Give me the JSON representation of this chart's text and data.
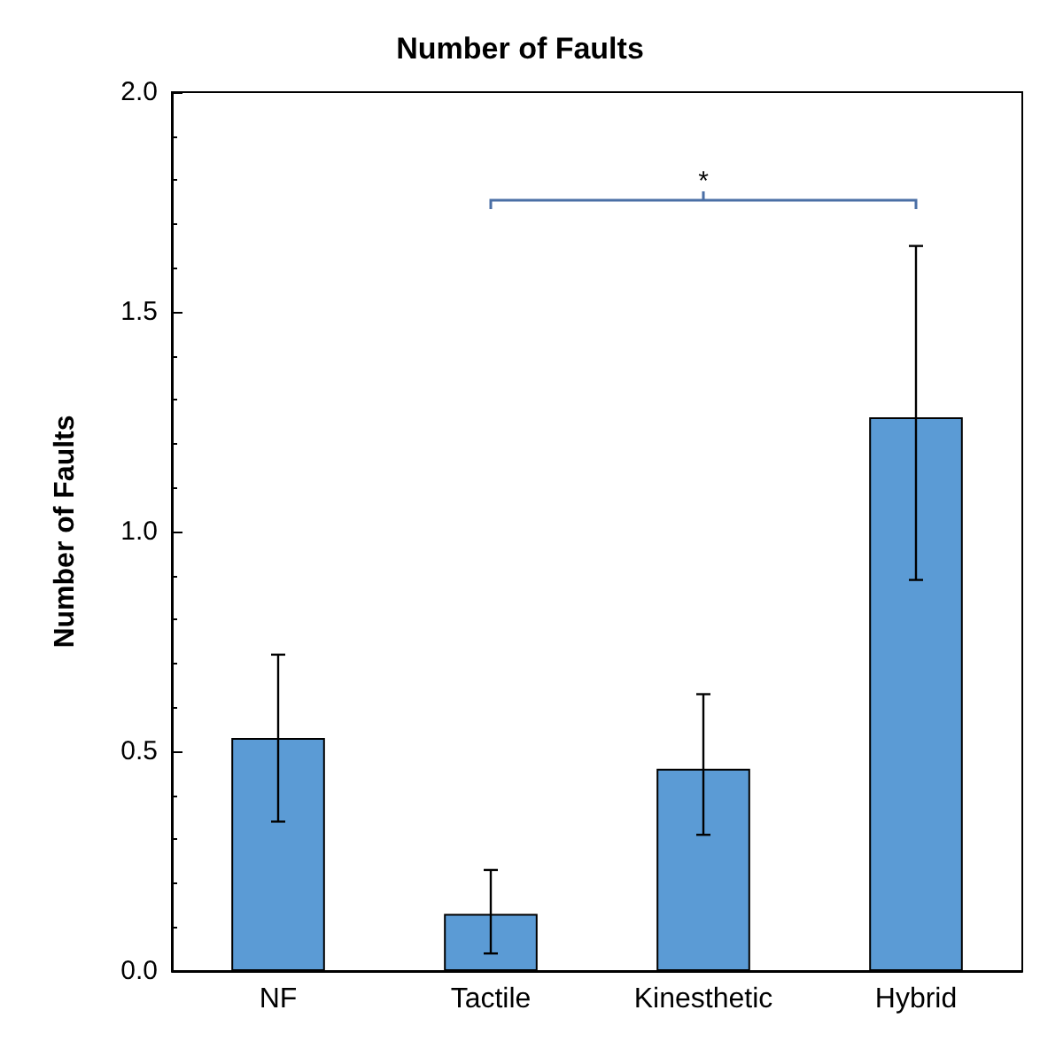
{
  "chart_data": {
    "type": "bar",
    "title": "Number of Faults",
    "ylabel": "Number of Faults",
    "categories": [
      "NF",
      "Tactile",
      "Kinesthetic",
      "Hybrid"
    ],
    "series": [
      {
        "color": "#5b9bd5",
        "values": [
          0.53,
          0.13,
          0.46,
          1.26
        ],
        "errors": [
          [
            0.34,
            0.72
          ],
          [
            0.04,
            0.23
          ],
          [
            0.31,
            0.63
          ],
          [
            0.89,
            1.65
          ]
        ]
      }
    ],
    "ylim": [
      0,
      2.0
    ],
    "yticks": [
      {
        "value": 0,
        "label": "0.0"
      },
      {
        "value": 0.5,
        "label": "0.5"
      },
      {
        "value": 1,
        "label": "1.0"
      },
      {
        "value": 1.5,
        "label": "1.5"
      },
      {
        "value": 2,
        "label": "2.0"
      }
    ],
    "grid": false,
    "annotations": [
      "*"
    ]
  }
}
